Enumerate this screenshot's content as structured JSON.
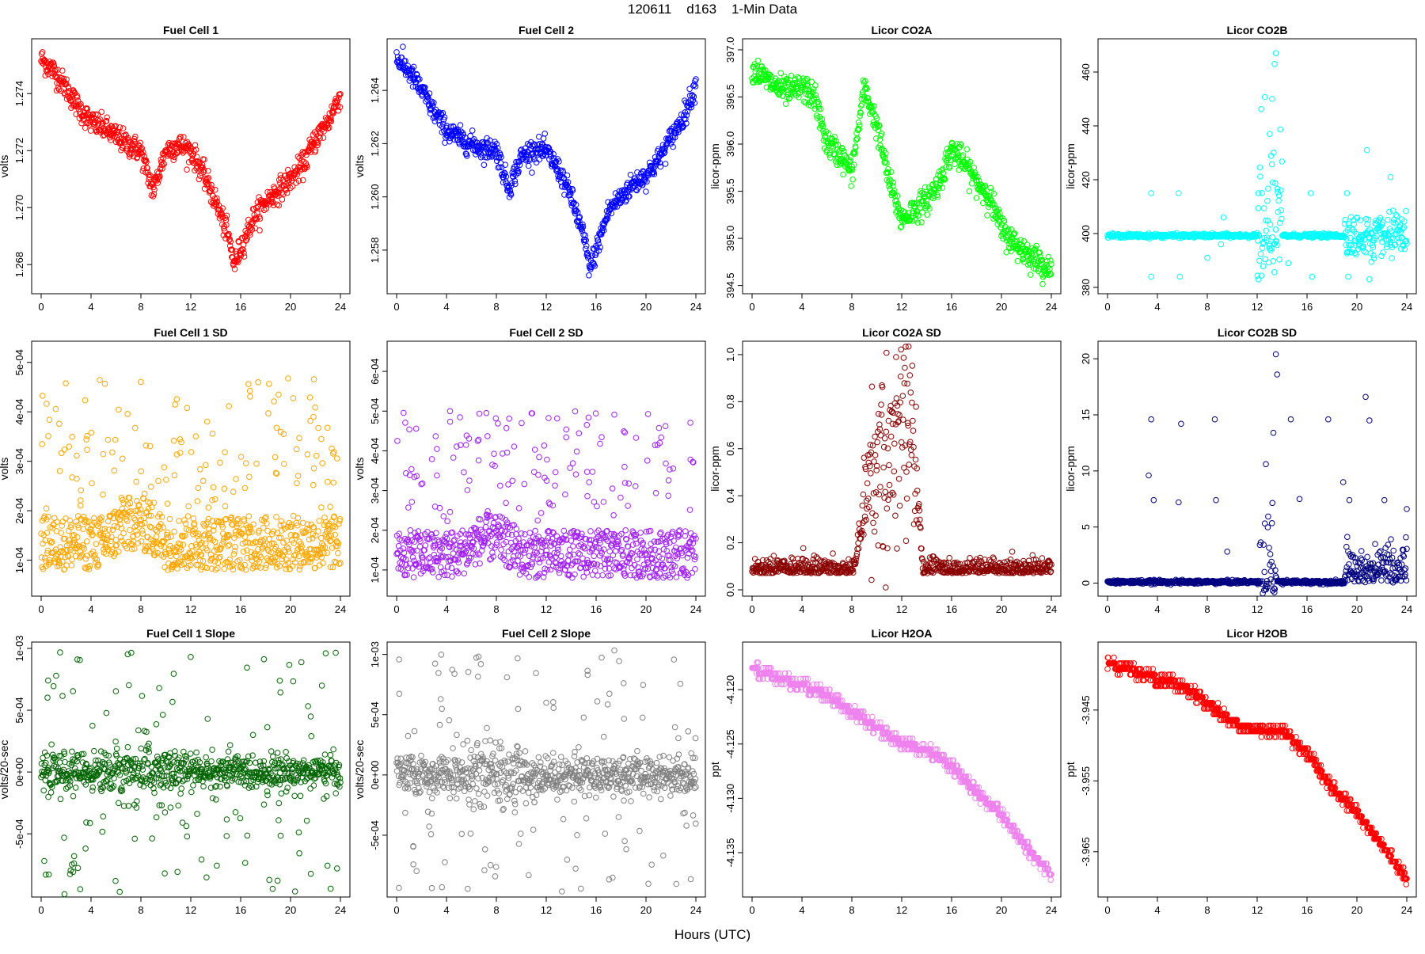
{
  "figure": {
    "title": "120611    d163    1-Min Data",
    "xlabel": "Hours (UTC)"
  },
  "colors": {
    "red": "#ff0000",
    "blue": "#0000ff",
    "green": "#00ff00",
    "cyan": "#00ffff",
    "orange": "#ffa500",
    "purple": "#a020f0",
    "darkred": "#8b0000",
    "navy": "#000080",
    "darkgreen": "#006400",
    "gray": "#808080",
    "violet": "#ee82ee"
  },
  "chart_data": [
    {
      "type": "scatter",
      "title": "Fuel Cell 1",
      "ylabel": "volts",
      "xlim": [
        0,
        24
      ],
      "ylim": [
        1.2672,
        1.2757
      ],
      "xticks": [
        0,
        4,
        8,
        12,
        16,
        20,
        24
      ],
      "yticks": [
        1.268,
        1.27,
        1.272,
        1.274
      ],
      "ytick_labels": [
        "1.268",
        "1.270",
        "1.272",
        "1.274"
      ],
      "color": "#ff0000",
      "pattern": "curve",
      "noise": 0.00035,
      "x": [
        0,
        1,
        2,
        3,
        4,
        5,
        6,
        7,
        8,
        8.5,
        9,
        10,
        11,
        12,
        13,
        14,
        15,
        15.5,
        16,
        17,
        18,
        19,
        20,
        21,
        22,
        23,
        24
      ],
      "y": [
        1.2752,
        1.2748,
        1.2742,
        1.2735,
        1.273,
        1.2728,
        1.2725,
        1.2722,
        1.272,
        1.2712,
        1.2706,
        1.272,
        1.2722,
        1.272,
        1.2712,
        1.2702,
        1.269,
        1.268,
        1.2686,
        1.2696,
        1.2702,
        1.2706,
        1.271,
        1.2715,
        1.2724,
        1.273,
        1.274
      ]
    },
    {
      "type": "scatter",
      "title": "Fuel Cell 2",
      "ylabel": "volts",
      "xlim": [
        0,
        24
      ],
      "ylim": [
        1.2566,
        1.2657
      ],
      "xticks": [
        0,
        4,
        8,
        12,
        16,
        20,
        24
      ],
      "yticks": [
        1.258,
        1.26,
        1.262,
        1.264
      ],
      "ytick_labels": [
        "1.258",
        "1.260",
        "1.262",
        "1.264"
      ],
      "color": "#0000ff",
      "pattern": "curve",
      "noise": 0.00035,
      "x": [
        0,
        1,
        2,
        3,
        4,
        5,
        6,
        7,
        8,
        8.5,
        9,
        10,
        11,
        12,
        13,
        14,
        15,
        15.5,
        16,
        17,
        18,
        19,
        20,
        21,
        22,
        23,
        24
      ],
      "y": [
        1.2652,
        1.2647,
        1.264,
        1.2632,
        1.2625,
        1.2622,
        1.262,
        1.2618,
        1.2618,
        1.261,
        1.2603,
        1.2615,
        1.2618,
        1.2617,
        1.261,
        1.26,
        1.2585,
        1.2573,
        1.258,
        1.2595,
        1.26,
        1.2605,
        1.2608,
        1.2614,
        1.2622,
        1.263,
        1.2642
      ]
    },
    {
      "type": "scatter",
      "title": "Licor CO2A",
      "ylabel": "licor-ppm",
      "xlim": [
        0,
        24
      ],
      "ylim": [
        394.48,
        397.05
      ],
      "xticks": [
        0,
        4,
        8,
        12,
        16,
        20,
        24
      ],
      "yticks": [
        394.5,
        395,
        395.5,
        396,
        396.5,
        397
      ],
      "ytick_labels": [
        "394.5",
        "395.0",
        "395.5",
        "396.0",
        "396.5",
        "397.0"
      ],
      "color": "#00ff00",
      "pattern": "curve",
      "noise": 0.12,
      "x": [
        0,
        1,
        2,
        3,
        4,
        5,
        6,
        7,
        8,
        9,
        10,
        11,
        12,
        13,
        14,
        15,
        16,
        17,
        18,
        19,
        20,
        21,
        22,
        23,
        24
      ],
      "y": [
        396.8,
        396.7,
        396.6,
        396.55,
        396.6,
        396.5,
        396.0,
        395.9,
        395.7,
        396.6,
        396.2,
        395.6,
        395.2,
        395.3,
        395.4,
        395.6,
        395.95,
        395.8,
        395.6,
        395.45,
        395.1,
        394.95,
        394.85,
        394.75,
        394.65
      ]
    },
    {
      "type": "scatter",
      "title": "Licor CO2B",
      "ylabel": "licor-ppm",
      "xlim": [
        0,
        24
      ],
      "ylim": [
        380,
        470
      ],
      "xticks": [
        0,
        4,
        8,
        12,
        16,
        20,
        24
      ],
      "yticks": [
        380,
        400,
        420,
        440,
        460
      ],
      "ytick_labels": [
        "380",
        "400",
        "420",
        "440",
        "460"
      ],
      "color": "#00ffff",
      "pattern": "base",
      "baseline": 399.2,
      "noise": 0.35,
      "burst": {
        "x0": 12,
        "x1": 14,
        "amp": 20
      },
      "burst2": {
        "x0": 19,
        "x1": 24,
        "amp": 6
      },
      "spikes": [
        [
          3.5,
          415
        ],
        [
          3.5,
          384
        ],
        [
          5.7,
          415
        ],
        [
          5.8,
          384
        ],
        [
          8,
          391
        ],
        [
          9.3,
          406
        ],
        [
          9.1,
          396
        ],
        [
          12.1,
          383
        ],
        [
          12.1,
          415
        ],
        [
          13.5,
          467
        ],
        [
          13.4,
          463
        ],
        [
          13.2,
          450
        ],
        [
          13.0,
          437
        ],
        [
          14.5,
          389
        ],
        [
          16.3,
          415
        ],
        [
          16.4,
          384
        ],
        [
          19.2,
          415
        ],
        [
          19.3,
          384
        ],
        [
          20.8,
          431
        ],
        [
          21,
          383
        ],
        [
          22.7,
          421
        ]
      ]
    },
    {
      "type": "scatter",
      "title": "Fuel Cell 1 SD",
      "ylabel": "volts",
      "xlim": [
        0,
        24
      ],
      "ylim": [
        4e-05,
        0.00053
      ],
      "xticks": [
        0,
        4,
        8,
        12,
        16,
        20,
        24
      ],
      "yticks": [
        0.0001,
        0.0002,
        0.0003,
        0.0004,
        0.0005
      ],
      "ytick_labels": [
        "1e-04",
        "2e-04",
        "3e-04",
        "4e-04",
        "5e-04"
      ],
      "color": "#ffa500",
      "pattern": "band",
      "bandlo": 8e-05,
      "bandhi": 0.00019,
      "bump": {
        "x0": 5,
        "x1": 10,
        "amp": 4e-05
      },
      "outlo": 0.0002,
      "outhi": 0.00047,
      "outn": 130
    },
    {
      "type": "scatter",
      "title": "Fuel Cell 2 SD",
      "ylabel": "volts",
      "xlim": [
        0,
        24
      ],
      "ylim": [
        5e-05,
        0.00066
      ],
      "xticks": [
        0,
        4,
        8,
        12,
        16,
        20,
        24
      ],
      "yticks": [
        0.0001,
        0.0002,
        0.0003,
        0.0004,
        0.0005,
        0.0006
      ],
      "ytick_labels": [
        "1e-04",
        "2e-04",
        "3e-04",
        "4e-04",
        "5e-04",
        "6e-04"
      ],
      "color": "#a020f0",
      "pattern": "band",
      "bandlo": 8e-05,
      "bandhi": 0.0002,
      "bump": {
        "x0": 5,
        "x1": 10,
        "amp": 4e-05
      },
      "outlo": 0.00022,
      "outhi": 0.0005,
      "outn": 130
    },
    {
      "type": "scatter",
      "title": "Licor CO2A SD",
      "ylabel": "licor-ppm",
      "xlim": [
        0,
        24
      ],
      "ylim": [
        0,
        1.03
      ],
      "xticks": [
        0,
        4,
        8,
        12,
        16,
        20,
        24
      ],
      "yticks": [
        0,
        0.2,
        0.4,
        0.6,
        0.8,
        1.0
      ],
      "ytick_labels": [
        "0.0",
        "0.2",
        "0.4",
        "0.6",
        "0.8",
        "1.0"
      ],
      "color": "#8b0000",
      "pattern": "peak",
      "base": 0.07,
      "noise": 0.03,
      "peak": {
        "x0": 8.7,
        "x1": 13.3,
        "amp": 0.6,
        "spread": 0.25
      }
    },
    {
      "type": "scatter",
      "title": "Licor CO2B SD",
      "ylabel": "licor-ppm",
      "xlim": [
        0,
        24
      ],
      "ylim": [
        -0.6,
        21
      ],
      "xticks": [
        0,
        4,
        8,
        12,
        16,
        20,
        24
      ],
      "yticks": [
        0,
        5,
        10,
        15,
        20
      ],
      "ytick_labels": [
        "0",
        "5",
        "10",
        "15",
        "20"
      ],
      "color": "#000080",
      "pattern": "base",
      "baseline": 0.1,
      "noise": 0.08,
      "burst": {
        "x0": 12.2,
        "x1": 13.6,
        "amp": 3
      },
      "burst2": {
        "x0": 19,
        "x1": 24,
        "amp": 2.5
      },
      "spikes": [
        [
          3.3,
          9.6
        ],
        [
          3.5,
          14.6
        ],
        [
          3.7,
          7.4
        ],
        [
          5.9,
          14.2
        ],
        [
          5.7,
          7.2
        ],
        [
          8.6,
          14.6
        ],
        [
          8.7,
          7.4
        ],
        [
          9.6,
          2.8
        ],
        [
          12.7,
          10.6
        ],
        [
          13.3,
          13.4
        ],
        [
          13.5,
          20.4
        ],
        [
          13.6,
          18.6
        ],
        [
          14.7,
          14.6
        ],
        [
          15.4,
          7.5
        ],
        [
          17.7,
          14.6
        ],
        [
          18.9,
          9
        ],
        [
          19.4,
          7.4
        ],
        [
          20.7,
          16.6
        ],
        [
          21,
          14.5
        ],
        [
          22.2,
          7.4
        ],
        [
          24,
          6.6
        ]
      ]
    },
    {
      "type": "scatter",
      "title": "Fuel Cell 1 Slope",
      "ylabel": "volts/20-sec",
      "xlim": [
        0,
        24
      ],
      "ylim": [
        -0.00096,
        0.001
      ],
      "xticks": [
        0,
        4,
        8,
        12,
        16,
        20,
        24
      ],
      "yticks": [
        -0.0005,
        0,
        0.0005,
        0.001
      ],
      "ytick_labels": [
        "-5e-04",
        "0e+00",
        "5e-04",
        "1e-03"
      ],
      "color": "#006400",
      "pattern": "sym",
      "base": 0,
      "noise": 7e-05,
      "bump": {
        "x0": 4,
        "x1": 12,
        "amp": 5e-05
      },
      "outn": 110,
      "outamp": 0.00085
    },
    {
      "type": "scatter",
      "title": "Fuel Cell 2 Slope",
      "ylabel": "volts/20-sec",
      "xlim": [
        0,
        24
      ],
      "ylim": [
        -0.00096,
        0.00105
      ],
      "xticks": [
        0,
        4,
        8,
        12,
        16,
        20,
        24
      ],
      "yticks": [
        -0.0005,
        0,
        0.0005,
        0.001
      ],
      "ytick_labels": [
        "-5e-04",
        "0e+00",
        "5e-04",
        "1e-03"
      ],
      "color": "#808080",
      "pattern": "sym",
      "base": 0,
      "noise": 8e-05,
      "bump": {
        "x0": 4,
        "x1": 12,
        "amp": 5e-05
      },
      "outn": 110,
      "outamp": 0.00085
    },
    {
      "type": "scatter",
      "title": "Licor H2OA",
      "ylabel": "ppt",
      "xlim": [
        0,
        24
      ],
      "ylim": [
        -4.1385,
        -4.1162
      ],
      "xticks": [
        0,
        4,
        8,
        12,
        16,
        20,
        24
      ],
      "yticks": [
        -4.135,
        -4.13,
        -4.125,
        -4.12
      ],
      "ytick_labels": [
        "-4.135",
        "-4.130",
        "-4.125",
        "-4.120"
      ],
      "color": "#ee82ee",
      "pattern": "step",
      "step": 0.0005,
      "jitter": 1,
      "x": [
        0,
        2,
        4,
        6,
        8,
        10,
        12,
        14,
        16,
        18,
        20,
        22,
        24
      ],
      "y": [
        -4.118,
        -4.119,
        -4.1195,
        -4.1205,
        -4.122,
        -4.1235,
        -4.125,
        -4.1255,
        -4.127,
        -4.1295,
        -4.1315,
        -4.1345,
        -4.137
      ]
    },
    {
      "type": "scatter",
      "title": "Licor H2OB",
      "ylabel": "ppt",
      "xlim": [
        0,
        24
      ],
      "ylim": [
        -3.9705,
        -3.9363
      ],
      "xticks": [
        0,
        4,
        8,
        12,
        16,
        20,
        24
      ],
      "yticks": [
        -3.965,
        -3.955,
        -3.945
      ],
      "ytick_labels": [
        "-3.965",
        "-3.955",
        "-3.945"
      ],
      "color": "#ff0000",
      "pattern": "step",
      "step": 0.0008,
      "jitter": 1,
      "x": [
        0,
        2,
        4,
        6,
        8,
        10,
        12,
        14,
        16,
        18,
        20,
        22,
        24
      ],
      "y": [
        -3.9385,
        -3.9395,
        -3.9405,
        -3.9415,
        -3.944,
        -3.9465,
        -3.948,
        -3.948,
        -3.951,
        -3.956,
        -3.9595,
        -3.964,
        -3.969
      ]
    }
  ]
}
